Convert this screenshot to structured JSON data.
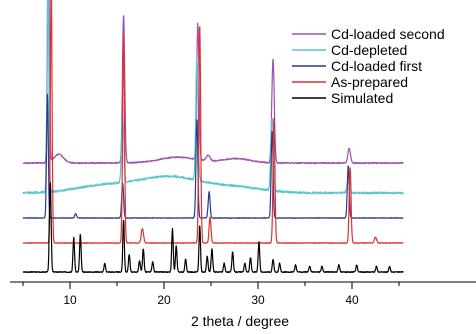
{
  "chart_data": {
    "type": "line",
    "title": "",
    "xlabel": "2 theta / degree",
    "ylabel": "",
    "xlim": [
      5,
      45
    ],
    "x_ticks": [
      10,
      20,
      30,
      40
    ],
    "x_tick_labels": [
      "10",
      "20",
      "30",
      "40"
    ],
    "grid": false,
    "legend_position": "top-right",
    "series": [
      {
        "name": "Cd-loaded second",
        "color": "#a050b0",
        "offset": 4,
        "peaks": [
          [
            7.7,
            8.0,
            0.1
          ],
          [
            15.7,
            5.1,
            0.12
          ],
          [
            23.6,
            4.7,
            0.12
          ],
          [
            31.6,
            3.6,
            0.13
          ],
          [
            39.7,
            0.5,
            0.14
          ],
          [
            24.7,
            0.2,
            0.2
          ]
        ],
        "humps": [
          [
            8.8,
            0.3,
            0.5
          ],
          [
            21.5,
            0.2,
            2.0
          ],
          [
            27.7,
            0.15,
            1.5
          ]
        ],
        "noise": 0.04
      },
      {
        "name": "Cd-depleted",
        "color": "#5ac4d2",
        "offset": 3,
        "peaks": [
          [
            7.65,
            7.3,
            0.1
          ],
          [
            15.6,
            2.3,
            0.12
          ],
          [
            23.5,
            4.2,
            0.12
          ],
          [
            31.5,
            2.5,
            0.13
          ],
          [
            39.6,
            0.4,
            0.14
          ]
        ],
        "humps": [
          [
            20.5,
            0.55,
            3.2
          ],
          [
            13.5,
            0.25,
            3.0
          ],
          [
            27.5,
            0.2,
            3.0
          ]
        ],
        "noise": 0.07
      },
      {
        "name": "Cd-loaded first",
        "color": "#2a3a8c",
        "offset": 2,
        "peaks": [
          [
            7.6,
            4.3,
            0.09
          ],
          [
            10.6,
            0.15,
            0.1
          ],
          [
            15.6,
            1.2,
            0.1
          ],
          [
            23.5,
            3.4,
            0.1
          ],
          [
            24.8,
            0.9,
            0.1
          ],
          [
            31.5,
            3.0,
            0.1
          ],
          [
            39.6,
            1.8,
            0.1
          ]
        ],
        "humps": [],
        "noise": 0.02
      },
      {
        "name": "As-prepared",
        "color": "#e03030",
        "offset": 1,
        "peaks": [
          [
            8.0,
            9.0,
            0.09
          ],
          [
            15.7,
            7.2,
            0.1
          ],
          [
            17.7,
            0.5,
            0.12
          ],
          [
            23.8,
            7.5,
            0.1
          ],
          [
            24.9,
            0.9,
            0.1
          ],
          [
            31.7,
            4.3,
            0.1
          ],
          [
            39.8,
            2.6,
            0.1
          ],
          [
            42.5,
            0.2,
            0.12
          ]
        ],
        "humps": [],
        "noise": 0.02
      },
      {
        "name": "Simulated",
        "color": "#000000",
        "offset": 0,
        "peaks": [
          [
            7.9,
            3.1,
            0.09
          ],
          [
            10.4,
            1.2,
            0.08
          ],
          [
            11.1,
            1.3,
            0.08
          ],
          [
            13.7,
            0.3,
            0.08
          ],
          [
            15.7,
            1.8,
            0.08
          ],
          [
            16.3,
            0.6,
            0.08
          ],
          [
            17.4,
            0.4,
            0.08
          ],
          [
            17.8,
            0.8,
            0.08
          ],
          [
            18.8,
            0.35,
            0.08
          ],
          [
            20.9,
            1.5,
            0.08
          ],
          [
            21.3,
            0.9,
            0.08
          ],
          [
            22.3,
            0.45,
            0.08
          ],
          [
            23.8,
            1.6,
            0.08
          ],
          [
            24.6,
            0.55,
            0.08
          ],
          [
            25.1,
            0.8,
            0.08
          ],
          [
            26.4,
            0.3,
            0.08
          ],
          [
            27.3,
            0.7,
            0.08
          ],
          [
            28.6,
            0.3,
            0.08
          ],
          [
            29.2,
            0.5,
            0.08
          ],
          [
            30.1,
            1.05,
            0.08
          ],
          [
            31.6,
            0.45,
            0.08
          ],
          [
            32.3,
            0.3,
            0.08
          ],
          [
            34.0,
            0.25,
            0.08
          ],
          [
            35.5,
            0.2,
            0.08
          ],
          [
            36.8,
            0.2,
            0.08
          ],
          [
            38.6,
            0.25,
            0.08
          ],
          [
            40.5,
            0.25,
            0.08
          ],
          [
            42.6,
            0.2,
            0.08
          ],
          [
            44.0,
            0.2,
            0.08
          ]
        ],
        "humps": [],
        "noise": 0.03
      }
    ]
  }
}
